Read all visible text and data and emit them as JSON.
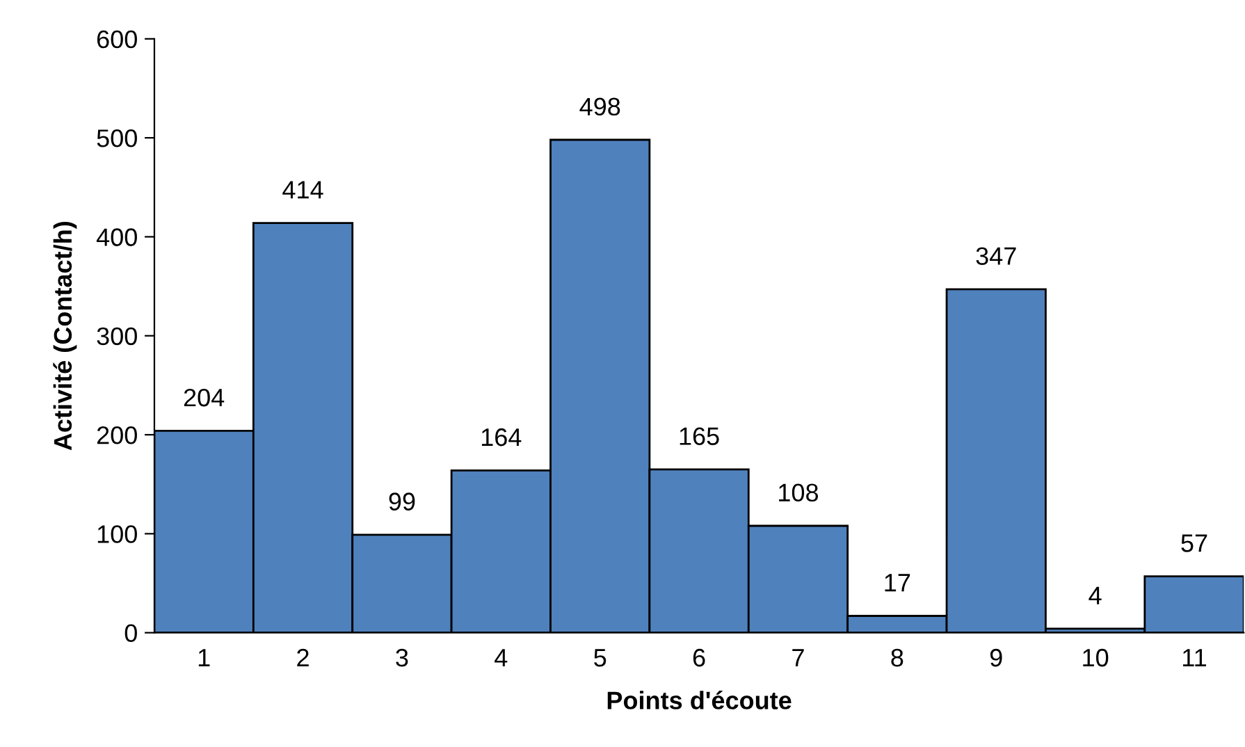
{
  "chart_data": {
    "type": "bar",
    "xlabel": "Points d'écoute",
    "ylabel": "Activité (Contact/h)",
    "categories": [
      "1",
      "2",
      "3",
      "4",
      "5",
      "6",
      "7",
      "8",
      "9",
      "10",
      "11"
    ],
    "values": [
      204,
      414,
      99,
      164,
      498,
      165,
      108,
      17,
      347,
      4,
      57
    ],
    "color": "#4f81bd",
    "ylim": [
      0,
      600
    ],
    "yticks": [
      0,
      100,
      200,
      300,
      400,
      500,
      600
    ],
    "data_labels": true,
    "grid": false,
    "legend": false
  }
}
